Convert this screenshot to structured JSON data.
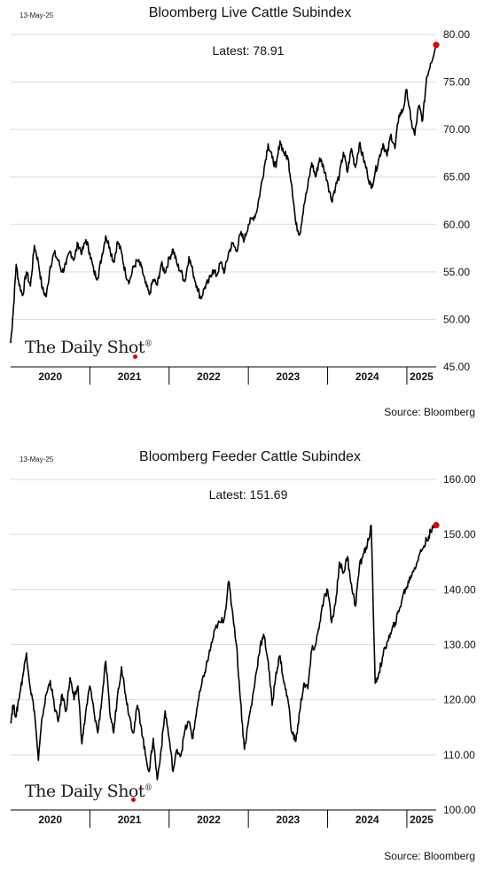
{
  "charts": [
    {
      "date_label": "13-May-25",
      "title": "Bloomberg Live Cattle Subindex",
      "latest_label": "Latest:  78.91",
      "source": "Source: Bloomberg",
      "watermark": "The Daily Shot",
      "watermark_mark": "®",
      "marker_color": "#e00000",
      "line_color": "#000000"
    },
    {
      "date_label": "13-May-25",
      "title": "Bloomberg Feeder Cattle Subindex",
      "latest_label": "Latest:  151.69",
      "source": "Source: Bloomberg",
      "watermark": "The Daily Shot",
      "watermark_mark": "®",
      "marker_color": "#e00000",
      "line_color": "#000000"
    }
  ],
  "chart_data": [
    {
      "type": "line",
      "title": "Bloomberg Live Cattle Subindex",
      "x_unit": "year",
      "x_range": [
        2020.0,
        2025.37
      ],
      "x_ticks": [
        "2020",
        "2021",
        "2022",
        "2023",
        "2024",
        "2025"
      ],
      "ylim": [
        45,
        80
      ],
      "y_ticks": [
        "45.00",
        "50.00",
        "55.00",
        "60.00",
        "65.00",
        "70.00",
        "75.00",
        "80.00"
      ],
      "grid": "horizontal",
      "series": [
        {
          "x": [
            2020.0,
            2020.03,
            2020.07,
            2020.1,
            2020.15,
            2020.2,
            2020.25,
            2020.3,
            2020.35,
            2020.4,
            2020.45,
            2020.5,
            2020.55,
            2020.6,
            2020.65,
            2020.7,
            2020.75,
            2020.8,
            2020.85,
            2020.9,
            2020.95,
            2021.0,
            2021.05,
            2021.1,
            2021.15,
            2021.2,
            2021.25,
            2021.3,
            2021.35,
            2021.4,
            2021.45,
            2021.5,
            2021.55,
            2021.6,
            2021.65,
            2021.7,
            2021.75,
            2021.8,
            2021.85,
            2021.9,
            2021.95,
            2022.0,
            2022.05,
            2022.1,
            2022.15,
            2022.2,
            2022.25,
            2022.3,
            2022.35,
            2022.4,
            2022.45,
            2022.5,
            2022.55,
            2022.6,
            2022.65,
            2022.7,
            2022.75,
            2022.8,
            2022.85,
            2022.9,
            2022.95,
            2023.0,
            2023.05,
            2023.1,
            2023.15,
            2023.2,
            2023.25,
            2023.3,
            2023.35,
            2023.4,
            2023.45,
            2023.5,
            2023.55,
            2023.6,
            2023.65,
            2023.7,
            2023.75,
            2023.8,
            2023.85,
            2023.9,
            2023.95,
            2024.0,
            2024.05,
            2024.1,
            2024.15,
            2024.2,
            2024.25,
            2024.3,
            2024.35,
            2024.4,
            2024.45,
            2024.5,
            2024.55,
            2024.6,
            2024.65,
            2024.7,
            2024.75,
            2024.8,
            2024.85,
            2024.9,
            2024.95,
            2025.0,
            2025.05,
            2025.1,
            2025.15,
            2025.2,
            2025.25,
            2025.3,
            2025.37
          ],
          "y": [
            47.5,
            50.5,
            55.8,
            54.0,
            52.5,
            55.0,
            53.5,
            57.8,
            56.0,
            53.2,
            52.4,
            55.6,
            57.0,
            56.2,
            55.0,
            55.8,
            57.2,
            56.3,
            58.0,
            57.0,
            58.4,
            57.0,
            55.0,
            54.4,
            56.6,
            58.8,
            57.6,
            56.0,
            58.2,
            57.0,
            54.8,
            54.0,
            55.5,
            56.2,
            55.5,
            53.8,
            52.6,
            54.2,
            53.6,
            55.8,
            55.0,
            56.4,
            57.4,
            55.8,
            55.0,
            54.0,
            56.6,
            55.0,
            53.5,
            52.2,
            53.4,
            54.0,
            55.2,
            54.6,
            56.0,
            55.0,
            57.0,
            58.0,
            57.2,
            59.0,
            58.4,
            60.0,
            60.6,
            61.2,
            63.5,
            66.0,
            68.5,
            67.0,
            66.0,
            68.8,
            67.5,
            67.0,
            64.0,
            60.0,
            59.0,
            62.0,
            64.0,
            66.5,
            65.0,
            67.0,
            66.0,
            64.5,
            62.5,
            64.0,
            65.2,
            67.6,
            65.5,
            68.0,
            66.0,
            68.5,
            67.0,
            65.5,
            63.8,
            65.5,
            67.0,
            68.5,
            67.2,
            69.5,
            68.0,
            71.5,
            72.0,
            74.2,
            71.0,
            69.4,
            72.5,
            71.0,
            75.5,
            77.0,
            78.91
          ]
        }
      ]
    },
    {
      "type": "line",
      "title": "Bloomberg Feeder Cattle Subindex",
      "x_unit": "year",
      "x_range": [
        2020.0,
        2025.37
      ],
      "x_ticks": [
        "2020",
        "2021",
        "2022",
        "2023",
        "2024",
        "2025"
      ],
      "ylim": [
        100,
        160
      ],
      "y_ticks": [
        "100.00",
        "110.00",
        "120.00",
        "130.00",
        "140.00",
        "150.00",
        "160.00"
      ],
      "grid": "horizontal",
      "series": [
        {
          "x": [
            2020.0,
            2020.03,
            2020.07,
            2020.1,
            2020.15,
            2020.2,
            2020.25,
            2020.3,
            2020.35,
            2020.4,
            2020.45,
            2020.5,
            2020.55,
            2020.6,
            2020.65,
            2020.7,
            2020.75,
            2020.8,
            2020.85,
            2020.9,
            2020.95,
            2021.0,
            2021.05,
            2021.1,
            2021.15,
            2021.2,
            2021.25,
            2021.3,
            2021.35,
            2021.4,
            2021.45,
            2021.5,
            2021.55,
            2021.6,
            2021.65,
            2021.7,
            2021.75,
            2021.8,
            2021.85,
            2021.9,
            2021.95,
            2022.0,
            2022.05,
            2022.1,
            2022.15,
            2022.2,
            2022.25,
            2022.3,
            2022.35,
            2022.4,
            2022.45,
            2022.5,
            2022.55,
            2022.6,
            2022.65,
            2022.7,
            2022.75,
            2022.8,
            2022.85,
            2022.9,
            2022.95,
            2023.0,
            2023.05,
            2023.1,
            2023.15,
            2023.2,
            2023.25,
            2023.3,
            2023.35,
            2023.4,
            2023.45,
            2023.5,
            2023.55,
            2023.6,
            2023.65,
            2023.7,
            2023.75,
            2023.8,
            2023.85,
            2023.9,
            2023.95,
            2024.0,
            2024.05,
            2024.1,
            2024.15,
            2024.2,
            2024.25,
            2024.3,
            2024.35,
            2024.4,
            2024.45,
            2024.5,
            2024.55,
            2024.6,
            2024.65,
            2024.7,
            2024.75,
            2024.8,
            2024.85,
            2024.9,
            2024.95,
            2025.0,
            2025.05,
            2025.1,
            2025.15,
            2025.2,
            2025.25,
            2025.3,
            2025.37
          ],
          "y": [
            116.0,
            119.0,
            117.0,
            120.0,
            124.0,
            128.5,
            122.0,
            118.0,
            109.0,
            117.0,
            121.0,
            123.5,
            119.0,
            116.0,
            121.0,
            118.0,
            124.0,
            120.0,
            122.5,
            112.0,
            118.0,
            122.5,
            118.0,
            114.0,
            120.0,
            127.0,
            118.0,
            114.0,
            121.0,
            126.0,
            121.0,
            117.0,
            114.0,
            119.0,
            115.0,
            110.0,
            107.0,
            113.0,
            105.5,
            111.0,
            118.0,
            113.0,
            107.0,
            111.0,
            110.0,
            114.5,
            116.0,
            113.0,
            118.5,
            122.0,
            125.0,
            128.0,
            131.0,
            133.5,
            134.0,
            135.0,
            141.5,
            136.0,
            130.0,
            120.0,
            111.0,
            116.0,
            120.0,
            125.0,
            130.0,
            131.5,
            127.0,
            119.0,
            125.0,
            128.0,
            123.0,
            120.0,
            114.0,
            112.5,
            118.0,
            123.0,
            122.0,
            129.0,
            130.0,
            134.0,
            138.0,
            140.0,
            134.0,
            137.5,
            145.0,
            143.0,
            146.0,
            141.0,
            137.0,
            144.0,
            146.5,
            148.0,
            151.69,
            123.0,
            125.0,
            128.0,
            130.5,
            132.0,
            134.0,
            136.0,
            139.0,
            140.5,
            142.5,
            144.0,
            146.0,
            147.5,
            149.0,
            150.5,
            151.69
          ]
        }
      ]
    }
  ]
}
